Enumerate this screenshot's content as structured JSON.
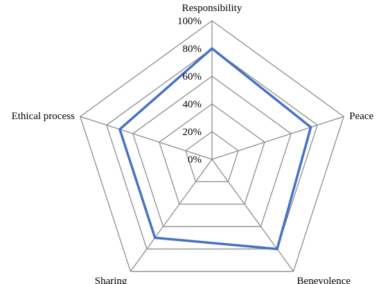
{
  "chart_data": {
    "type": "radar",
    "axes": [
      "Responsibility",
      "Peace",
      "Benevolence",
      "Sharing",
      "Ethical process"
    ],
    "ticks": [
      "0%",
      "20%",
      "40%",
      "60%",
      "80%",
      "100%"
    ],
    "rmax": 100,
    "grid": true,
    "series": [
      {
        "values": [
          80,
          75,
          80,
          70,
          70
        ],
        "color": "#4472c4"
      }
    ]
  }
}
